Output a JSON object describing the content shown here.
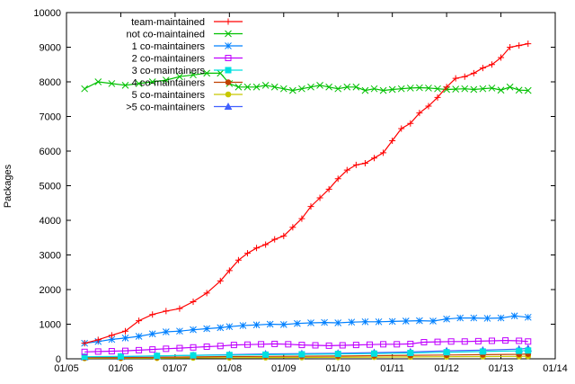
{
  "chart_data": {
    "type": "line",
    "ylabel": "Packages",
    "xlabel": "",
    "title": "",
    "ylim": [
      0,
      10000
    ],
    "y_ticks": [
      0,
      1000,
      2000,
      3000,
      4000,
      5000,
      6000,
      7000,
      8000,
      9000,
      10000
    ],
    "x_range": [
      "2005-01",
      "2014-01"
    ],
    "x_ticks": [
      "01/05",
      "01/06",
      "01/07",
      "01/08",
      "01/09",
      "01/10",
      "01/11",
      "01/12",
      "01/13",
      "01/14"
    ],
    "grid": false,
    "legend_position": "top-left",
    "series": [
      {
        "name": "team-maintained",
        "color": "#ff0000",
        "marker": "plus",
        "points": [
          [
            "2005-05",
            450
          ],
          [
            "2005-08",
            550
          ],
          [
            "2005-11",
            680
          ],
          [
            "2006-02",
            800
          ],
          [
            "2006-05",
            1100
          ],
          [
            "2006-08",
            1280
          ],
          [
            "2006-11",
            1380
          ],
          [
            "2007-02",
            1450
          ],
          [
            "2007-05",
            1650
          ],
          [
            "2007-08",
            1900
          ],
          [
            "2007-11",
            2250
          ],
          [
            "2008-01",
            2550
          ],
          [
            "2008-03",
            2850
          ],
          [
            "2008-05",
            3050
          ],
          [
            "2008-07",
            3200
          ],
          [
            "2008-09",
            3300
          ],
          [
            "2008-11",
            3450
          ],
          [
            "2009-01",
            3550
          ],
          [
            "2009-03",
            3800
          ],
          [
            "2009-05",
            4050
          ],
          [
            "2009-07",
            4400
          ],
          [
            "2009-09",
            4650
          ],
          [
            "2009-11",
            4900
          ],
          [
            "2010-01",
            5200
          ],
          [
            "2010-03",
            5450
          ],
          [
            "2010-05",
            5600
          ],
          [
            "2010-07",
            5650
          ],
          [
            "2010-09",
            5800
          ],
          [
            "2010-11",
            5950
          ],
          [
            "2011-01",
            6300
          ],
          [
            "2011-03",
            6650
          ],
          [
            "2011-05",
            6800
          ],
          [
            "2011-07",
            7100
          ],
          [
            "2011-09",
            7300
          ],
          [
            "2011-11",
            7550
          ],
          [
            "2012-01",
            7850
          ],
          [
            "2012-03",
            8100
          ],
          [
            "2012-05",
            8150
          ],
          [
            "2012-07",
            8250
          ],
          [
            "2012-09",
            8400
          ],
          [
            "2012-11",
            8500
          ],
          [
            "2013-01",
            8700
          ],
          [
            "2013-03",
            9000
          ],
          [
            "2013-05",
            9050
          ],
          [
            "2013-07",
            9100
          ]
        ]
      },
      {
        "name": "not co-maintained",
        "color": "#00c000",
        "marker": "cross",
        "points": [
          [
            "2005-05",
            7800
          ],
          [
            "2005-08",
            8000
          ],
          [
            "2005-11",
            7950
          ],
          [
            "2006-02",
            7900
          ],
          [
            "2006-05",
            7950
          ],
          [
            "2006-08",
            8000
          ],
          [
            "2006-11",
            8050
          ],
          [
            "2007-02",
            8150
          ],
          [
            "2007-05",
            8200
          ],
          [
            "2007-08",
            8250
          ],
          [
            "2007-11",
            8250
          ],
          [
            "2008-01",
            7950
          ],
          [
            "2008-03",
            7850
          ],
          [
            "2008-05",
            7850
          ],
          [
            "2008-07",
            7850
          ],
          [
            "2008-09",
            7900
          ],
          [
            "2008-11",
            7850
          ],
          [
            "2009-01",
            7800
          ],
          [
            "2009-03",
            7750
          ],
          [
            "2009-05",
            7800
          ],
          [
            "2009-07",
            7850
          ],
          [
            "2009-09",
            7900
          ],
          [
            "2009-11",
            7850
          ],
          [
            "2010-01",
            7800
          ],
          [
            "2010-03",
            7850
          ],
          [
            "2010-05",
            7850
          ],
          [
            "2010-07",
            7750
          ],
          [
            "2010-09",
            7800
          ],
          [
            "2010-11",
            7750
          ],
          [
            "2011-01",
            7780
          ],
          [
            "2011-03",
            7800
          ],
          [
            "2011-05",
            7820
          ],
          [
            "2011-07",
            7830
          ],
          [
            "2011-09",
            7820
          ],
          [
            "2011-11",
            7800
          ],
          [
            "2012-01",
            7780
          ],
          [
            "2012-03",
            7790
          ],
          [
            "2012-05",
            7800
          ],
          [
            "2012-07",
            7780
          ],
          [
            "2012-09",
            7800
          ],
          [
            "2012-11",
            7820
          ],
          [
            "2013-01",
            7760
          ],
          [
            "2013-03",
            7850
          ],
          [
            "2013-05",
            7760
          ],
          [
            "2013-07",
            7750
          ]
        ]
      },
      {
        "name": "1 co-maintainers",
        "color": "#0080ff",
        "marker": "star",
        "points": [
          [
            "2005-05",
            450
          ],
          [
            "2005-08",
            500
          ],
          [
            "2005-11",
            560
          ],
          [
            "2006-02",
            600
          ],
          [
            "2006-05",
            650
          ],
          [
            "2006-08",
            720
          ],
          [
            "2006-11",
            780
          ],
          [
            "2007-02",
            800
          ],
          [
            "2007-05",
            840
          ],
          [
            "2007-08",
            870
          ],
          [
            "2007-11",
            900
          ],
          [
            "2008-01",
            930
          ],
          [
            "2008-04",
            960
          ],
          [
            "2008-07",
            980
          ],
          [
            "2008-10",
            1000
          ],
          [
            "2009-01",
            990
          ],
          [
            "2009-04",
            1020
          ],
          [
            "2009-07",
            1040
          ],
          [
            "2009-10",
            1050
          ],
          [
            "2010-01",
            1040
          ],
          [
            "2010-04",
            1060
          ],
          [
            "2010-07",
            1070
          ],
          [
            "2010-10",
            1070
          ],
          [
            "2011-01",
            1080
          ],
          [
            "2011-04",
            1090
          ],
          [
            "2011-07",
            1100
          ],
          [
            "2011-10",
            1090
          ],
          [
            "2012-01",
            1150
          ],
          [
            "2012-04",
            1180
          ],
          [
            "2012-07",
            1180
          ],
          [
            "2012-10",
            1170
          ],
          [
            "2013-01",
            1180
          ],
          [
            "2013-04",
            1240
          ],
          [
            "2013-07",
            1200
          ]
        ]
      },
      {
        "name": "2 co-maintainers",
        "color": "#c000ff",
        "marker": "box",
        "points": [
          [
            "2005-05",
            200
          ],
          [
            "2005-08",
            210
          ],
          [
            "2005-11",
            220
          ],
          [
            "2006-02",
            230
          ],
          [
            "2006-05",
            250
          ],
          [
            "2006-08",
            270
          ],
          [
            "2006-11",
            290
          ],
          [
            "2007-02",
            310
          ],
          [
            "2007-05",
            330
          ],
          [
            "2007-08",
            350
          ],
          [
            "2007-11",
            370
          ],
          [
            "2008-02",
            400
          ],
          [
            "2008-05",
            410
          ],
          [
            "2008-08",
            420
          ],
          [
            "2008-11",
            430
          ],
          [
            "2009-02",
            420
          ],
          [
            "2009-05",
            400
          ],
          [
            "2009-08",
            390
          ],
          [
            "2009-11",
            380
          ],
          [
            "2010-02",
            390
          ],
          [
            "2010-05",
            400
          ],
          [
            "2010-08",
            410
          ],
          [
            "2010-11",
            420
          ],
          [
            "2011-02",
            420
          ],
          [
            "2011-05",
            430
          ],
          [
            "2011-08",
            480
          ],
          [
            "2011-11",
            490
          ],
          [
            "2012-02",
            500
          ],
          [
            "2012-05",
            500
          ],
          [
            "2012-08",
            510
          ],
          [
            "2012-11",
            520
          ],
          [
            "2013-02",
            530
          ],
          [
            "2013-05",
            520
          ],
          [
            "2013-07",
            500
          ]
        ]
      },
      {
        "name": "3 co-maintainers",
        "color": "#00e0e0",
        "marker": "filled-box",
        "points": [
          [
            "2005-05",
            60
          ],
          [
            "2006-01",
            70
          ],
          [
            "2006-09",
            85
          ],
          [
            "2007-05",
            100
          ],
          [
            "2008-01",
            110
          ],
          [
            "2008-09",
            120
          ],
          [
            "2009-05",
            130
          ],
          [
            "2010-01",
            140
          ],
          [
            "2010-09",
            150
          ],
          [
            "2011-05",
            170
          ],
          [
            "2012-01",
            190
          ],
          [
            "2012-09",
            210
          ],
          [
            "2013-05",
            230
          ],
          [
            "2013-07",
            240
          ]
        ]
      },
      {
        "name": "4 co-maintainers",
        "color": "#c04000",
        "marker": "circle",
        "points": [
          [
            "2005-05",
            30
          ],
          [
            "2006-01",
            35
          ],
          [
            "2006-09",
            45
          ],
          [
            "2007-05",
            55
          ],
          [
            "2008-01",
            65
          ],
          [
            "2008-09",
            70
          ],
          [
            "2009-05",
            75
          ],
          [
            "2010-01",
            80
          ],
          [
            "2010-09",
            90
          ],
          [
            "2011-05",
            100
          ],
          [
            "2012-01",
            110
          ],
          [
            "2012-09",
            120
          ],
          [
            "2013-05",
            130
          ],
          [
            "2013-07",
            140
          ]
        ]
      },
      {
        "name": "5 co-maintainers",
        "color": "#c8c800",
        "marker": "circle",
        "points": [
          [
            "2005-05",
            15
          ],
          [
            "2006-01",
            18
          ],
          [
            "2006-09",
            22
          ],
          [
            "2007-05",
            28
          ],
          [
            "2008-01",
            32
          ],
          [
            "2008-09",
            36
          ],
          [
            "2009-05",
            40
          ],
          [
            "2010-01",
            45
          ],
          [
            "2010-09",
            50
          ],
          [
            "2011-05",
            55
          ],
          [
            "2012-01",
            60
          ],
          [
            "2012-09",
            65
          ],
          [
            "2013-05",
            70
          ],
          [
            "2013-07",
            75
          ]
        ]
      },
      {
        "name": ">5 co-maintainers",
        "color": "#4060ff",
        "marker": "triangle",
        "points": [
          [
            "2005-05",
            50
          ],
          [
            "2006-01",
            60
          ],
          [
            "2006-09",
            80
          ],
          [
            "2007-05",
            100
          ],
          [
            "2008-01",
            120
          ],
          [
            "2008-09",
            140
          ],
          [
            "2009-05",
            150
          ],
          [
            "2010-01",
            160
          ],
          [
            "2010-09",
            180
          ],
          [
            "2011-05",
            200
          ],
          [
            "2012-01",
            230
          ],
          [
            "2012-09",
            250
          ],
          [
            "2013-05",
            280
          ],
          [
            "2013-07",
            300
          ]
        ]
      }
    ]
  }
}
